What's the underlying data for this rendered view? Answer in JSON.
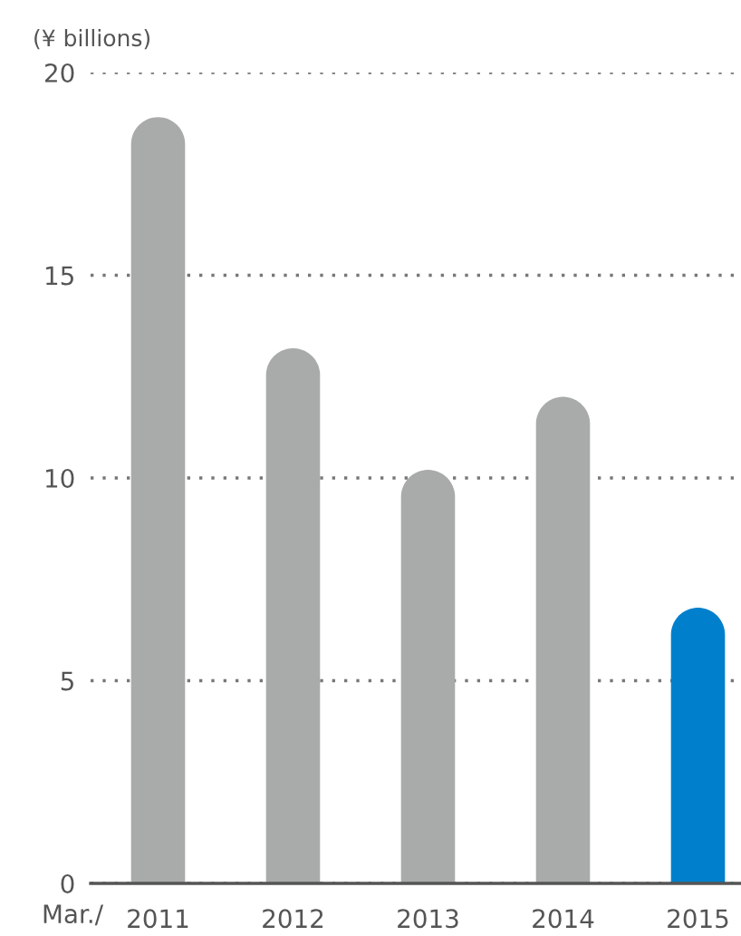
{
  "chart_data": {
    "type": "bar",
    "ylabel": "(¥ billions)",
    "xlabel": "Mar./",
    "categories": [
      "2011",
      "2012",
      "2013",
      "2014",
      "2015"
    ],
    "values": [
      18.9,
      13.2,
      10.2,
      12.0,
      6.8
    ],
    "colors": [
      "#a9aaaa",
      "#a9aaaa",
      "#a9aaaa",
      "#a9aaaa",
      "#0080cc"
    ],
    "ylim": [
      0,
      20
    ],
    "yticks": [
      0,
      5,
      10,
      15,
      20
    ],
    "grid": "y"
  }
}
